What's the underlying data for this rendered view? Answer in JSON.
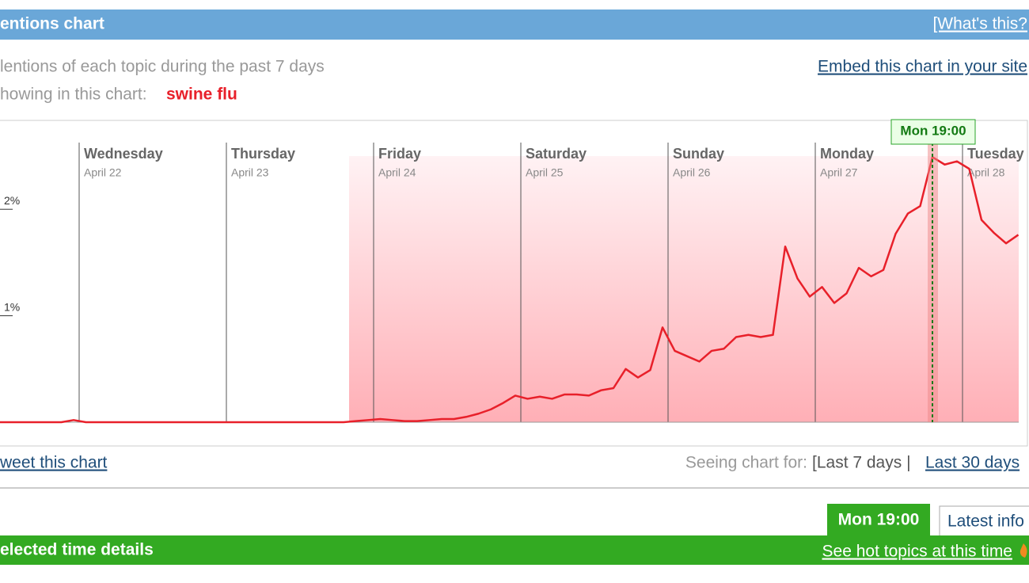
{
  "header": {
    "title": "entions chart",
    "help_link": "[What's this?"
  },
  "intro": {
    "line1": "lentions of each topic during the past 7 days",
    "line2": "howing in this chart:",
    "topic": "swine flu",
    "embed_link": "Embed this chart in your site"
  },
  "chart_data": {
    "type": "line",
    "color": "#e8202a",
    "days": [
      {
        "name": "Wednesday",
        "date": "April 22"
      },
      {
        "name": "Thursday",
        "date": "April 23"
      },
      {
        "name": "Friday",
        "date": "April 24"
      },
      {
        "name": "Saturday",
        "date": "April 25"
      },
      {
        "name": "Sunday",
        "date": "April 26"
      },
      {
        "name": "Monday",
        "date": "April 27"
      },
      {
        "name": "Tuesday",
        "date": "April 28"
      }
    ],
    "ylim": [
      0,
      2.5
    ],
    "yticks": [
      {
        "value": 1,
        "label": "1%"
      },
      {
        "value": 2,
        "label": "2%"
      }
    ],
    "selected_label": "Mon 19:00",
    "values": [
      0,
      0,
      0,
      0,
      0,
      0,
      0.02,
      0,
      0,
      0,
      0,
      0,
      0,
      0,
      0,
      0,
      0,
      0,
      0,
      0,
      0,
      0,
      0,
      0,
      0,
      0,
      0,
      0,
      0,
      0.01,
      0.02,
      0.03,
      0.02,
      0.01,
      0.01,
      0.02,
      0.03,
      0.03,
      0.05,
      0.08,
      0.12,
      0.18,
      0.25,
      0.22,
      0.24,
      0.22,
      0.26,
      0.26,
      0.25,
      0.3,
      0.32,
      0.5,
      0.42,
      0.49,
      0.89,
      0.67,
      0.62,
      0.57,
      0.67,
      0.69,
      0.8,
      0.82,
      0.8,
      0.82,
      1.65,
      1.35,
      1.18,
      1.27,
      1.12,
      1.21,
      1.45,
      1.37,
      1.43,
      1.77,
      1.96,
      2.03,
      2.49,
      2.42,
      2.45,
      2.38,
      1.9,
      1.78,
      1.68,
      1.76
    ]
  },
  "footer": {
    "tweet_link": "weet this chart",
    "seeing_label": "Seeing chart for:",
    "current_range": "[Last 7 days |",
    "other_range": "Last 30 days"
  },
  "details": {
    "active_tab": "Mon 19:00",
    "other_tab": "Latest info",
    "title": "elected time details",
    "hot_link": "See hot topics at this time"
  }
}
